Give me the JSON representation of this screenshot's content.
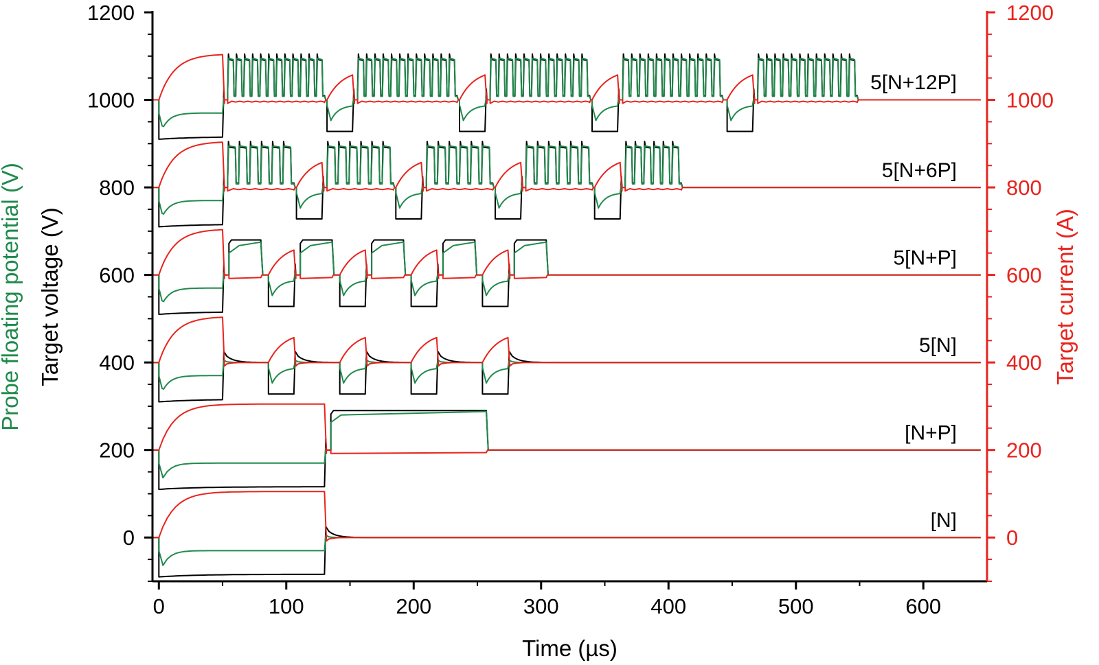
{
  "chart_data": {
    "type": "line",
    "xlabel": "Time (µs)",
    "ylabel_left_parts": [
      {
        "text": "Probe floating potential (V)",
        "color": "#1f8a4c"
      },
      {
        "text": "Target voltage (V)",
        "color": "#000000"
      }
    ],
    "ylabel_right": "Target current (A)",
    "xlim": [
      -5,
      650
    ],
    "ylim_left": [
      -100,
      1200
    ],
    "ylim_right": [
      -100,
      1200
    ],
    "x_ticks": [
      0,
      100,
      200,
      300,
      400,
      500,
      600
    ],
    "y_ticks_left": [
      0,
      200,
      400,
      600,
      800,
      1000,
      1200
    ],
    "y_ticks_right": [
      0,
      200,
      400,
      600,
      800,
      1000,
      1200
    ],
    "grid": false,
    "colors": {
      "target_voltage": "#000000",
      "probe_potential": "#1f8a4c",
      "target_current": "#e8231c",
      "right_axis": "#e8231c"
    },
    "series": [
      {
        "label": "[N]",
        "offset": 0,
        "segments": [
          {
            "kind": "negative",
            "start": 0,
            "end": 130
          }
        ]
      },
      {
        "label": "[N+P]",
        "offset": 200,
        "segments": [
          {
            "kind": "negative",
            "start": 0,
            "end": 130
          },
          {
            "kind": "positive",
            "start": 135,
            "end": 257
          }
        ]
      },
      {
        "label": "5[N]",
        "offset": 400,
        "segments": [
          {
            "kind": "negative",
            "start": 0,
            "end": 50
          },
          {
            "kind": "negative",
            "start": 86,
            "end": 106
          },
          {
            "kind": "negative",
            "start": 142,
            "end": 162
          },
          {
            "kind": "negative",
            "start": 198,
            "end": 218
          },
          {
            "kind": "negative",
            "start": 254,
            "end": 274
          }
        ]
      },
      {
        "label": "5[N+P]",
        "offset": 600,
        "segments": [
          {
            "kind": "negative",
            "start": 0,
            "end": 50
          },
          {
            "kind": "positive",
            "start": 55,
            "end": 80
          },
          {
            "kind": "negative",
            "start": 86,
            "end": 106
          },
          {
            "kind": "positive",
            "start": 111,
            "end": 136
          },
          {
            "kind": "negative",
            "start": 142,
            "end": 162
          },
          {
            "kind": "positive",
            "start": 167,
            "end": 192
          },
          {
            "kind": "negative",
            "start": 198,
            "end": 218
          },
          {
            "kind": "positive",
            "start": 223,
            "end": 248
          },
          {
            "kind": "negative",
            "start": 254,
            "end": 274
          },
          {
            "kind": "positive",
            "start": 279,
            "end": 304
          }
        ]
      },
      {
        "label": "5[N+6P]",
        "offset": 800,
        "segments": [
          {
            "kind": "negative",
            "start": 0,
            "end": 50
          },
          {
            "kind": "pulsetrain",
            "start": 54,
            "end": 106,
            "count": 6
          },
          {
            "kind": "negative",
            "start": 108,
            "end": 128
          },
          {
            "kind": "pulsetrain",
            "start": 132,
            "end": 184,
            "count": 6
          },
          {
            "kind": "negative",
            "start": 186,
            "end": 206
          },
          {
            "kind": "pulsetrain",
            "start": 210,
            "end": 262,
            "count": 6
          },
          {
            "kind": "negative",
            "start": 264,
            "end": 284
          },
          {
            "kind": "pulsetrain",
            "start": 288,
            "end": 340,
            "count": 6
          },
          {
            "kind": "negative",
            "start": 342,
            "end": 362
          },
          {
            "kind": "pulsetrain",
            "start": 366,
            "end": 410,
            "count": 6
          }
        ]
      },
      {
        "label": "5[N+12P]",
        "offset": 1000,
        "segments": [
          {
            "kind": "negative",
            "start": 0,
            "end": 50
          },
          {
            "kind": "pulsetrain",
            "start": 54,
            "end": 130,
            "count": 12
          },
          {
            "kind": "negative",
            "start": 132,
            "end": 152
          },
          {
            "kind": "pulsetrain",
            "start": 156,
            "end": 234,
            "count": 12
          },
          {
            "kind": "negative",
            "start": 236,
            "end": 256
          },
          {
            "kind": "pulsetrain",
            "start": 260,
            "end": 338,
            "count": 12
          },
          {
            "kind": "negative",
            "start": 340,
            "end": 360
          },
          {
            "kind": "pulsetrain",
            "start": 364,
            "end": 442,
            "count": 12
          },
          {
            "kind": "negative",
            "start": 446,
            "end": 466
          },
          {
            "kind": "pulsetrain",
            "start": 470,
            "end": 548,
            "count": 12
          }
        ]
      }
    ]
  }
}
